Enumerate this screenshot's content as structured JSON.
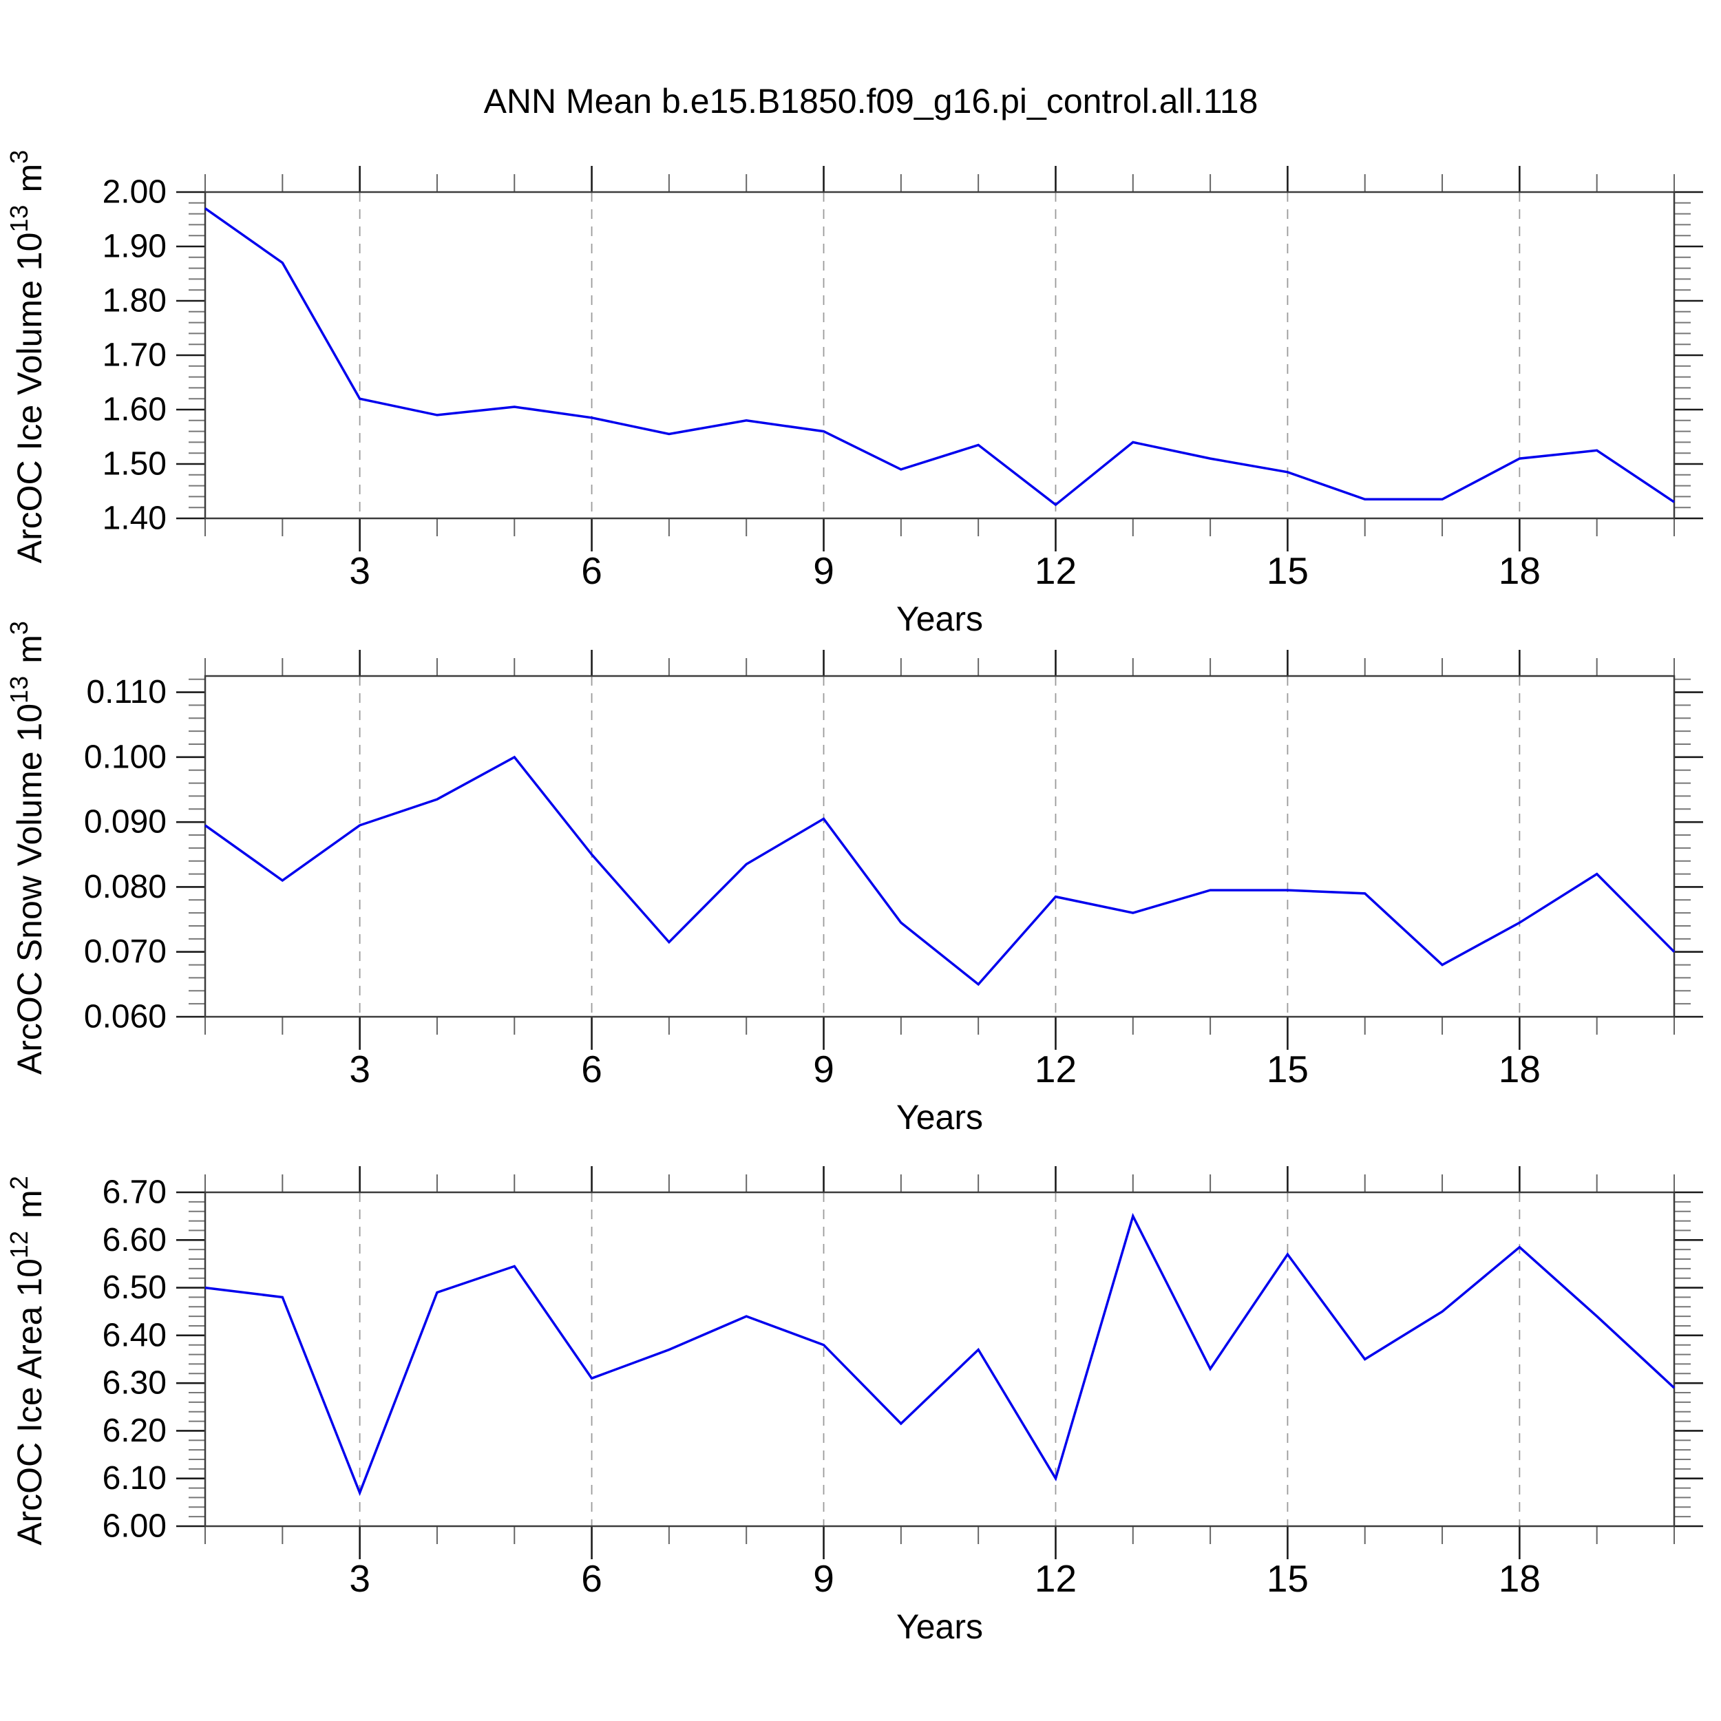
{
  "title": "ANN Mean b.e15.B1850.f09_g16.pi_control.all.118",
  "style": {
    "line_color": "#0000ed",
    "border_color": "#3c3c3c",
    "major_tick_color": "#1a1a1a",
    "minor_tick_color": "#777777",
    "year_tick_color": "#666666",
    "grid_color": "#9a9a9a",
    "label_color": "#000000"
  },
  "chart_data": [
    {
      "type": "line",
      "name": "arcoc-ice-volume",
      "ylabel_plain": "ArcOC Ice Volume 10^13 m^3",
      "ylabel_parts": [
        {
          "text": "ArcOC Ice Volume 10"
        },
        {
          "super": "13"
        },
        {
          "text": " m"
        },
        {
          "super": "3"
        }
      ],
      "xlabel": "Years",
      "x": [
        1,
        2,
        3,
        4,
        5,
        6,
        7,
        8,
        9,
        10,
        11,
        12,
        13,
        14,
        15,
        16,
        17,
        18,
        19,
        20
      ],
      "values": [
        1.97,
        1.87,
        1.62,
        1.59,
        1.605,
        1.585,
        1.555,
        1.58,
        1.56,
        1.49,
        1.535,
        1.425,
        1.54,
        1.51,
        1.485,
        1.435,
        1.435,
        1.51,
        1.525,
        1.43
      ],
      "xlim": [
        1,
        20
      ],
      "ylim": [
        1.4,
        2.0
      ],
      "ytick_values": [
        1.4,
        1.5,
        1.6,
        1.7,
        1.8,
        1.9,
        2.0
      ],
      "ytick_labels": [
        "1.40",
        "1.50",
        "1.60",
        "1.70",
        "1.80",
        "1.90",
        "2.00"
      ],
      "y_minor_step": 0.02,
      "xticks_labeled": [
        3,
        6,
        9,
        12,
        15,
        18
      ],
      "xtick_labels": [
        "3",
        "6",
        "9",
        "12",
        "15",
        "18"
      ],
      "grid_years": [
        3,
        6,
        9,
        12,
        15,
        18
      ],
      "grid_style": "dashed-vertical"
    },
    {
      "type": "line",
      "name": "arcoc-snow-volume",
      "ylabel_plain": "ArcOC Snow Volume 10^13 m^3",
      "ylabel_parts": [
        {
          "text": "ArcOC Snow Volume 10"
        },
        {
          "super": "13"
        },
        {
          "text": " m"
        },
        {
          "super": "3"
        }
      ],
      "xlabel": "Years",
      "x": [
        1,
        2,
        3,
        4,
        5,
        6,
        7,
        8,
        9,
        10,
        11,
        12,
        13,
        14,
        15,
        16,
        17,
        18,
        19,
        20
      ],
      "values": [
        0.0895,
        0.081,
        0.0895,
        0.0935,
        0.1,
        0.085,
        0.0715,
        0.0835,
        0.0905,
        0.0745,
        0.065,
        0.0785,
        0.076,
        0.0795,
        0.0795,
        0.079,
        0.068,
        0.0745,
        0.082,
        0.07
      ],
      "xlim": [
        1,
        20
      ],
      "ylim": [
        0.06,
        0.1125
      ],
      "ytick_values": [
        0.06,
        0.07,
        0.08,
        0.09,
        0.1,
        0.11
      ],
      "ytick_labels": [
        "0.060",
        "0.070",
        "0.080",
        "0.090",
        "0.100",
        "0.110"
      ],
      "y_minor_step": 0.002,
      "xticks_labeled": [
        3,
        6,
        9,
        12,
        15,
        18
      ],
      "xtick_labels": [
        "3",
        "6",
        "9",
        "12",
        "15",
        "18"
      ],
      "grid_years": [
        3,
        6,
        9,
        12,
        15,
        18
      ],
      "grid_style": "dashed-vertical"
    },
    {
      "type": "line",
      "name": "arcoc-ice-area",
      "ylabel_plain": "ArcOC Ice Area 10^12 m^2",
      "ylabel_parts": [
        {
          "text": "ArcOC Ice Area 10"
        },
        {
          "super": "12"
        },
        {
          "text": " m"
        },
        {
          "super": "2"
        }
      ],
      "xlabel": "Years",
      "x": [
        1,
        2,
        3,
        4,
        5,
        6,
        7,
        8,
        9,
        10,
        11,
        12,
        13,
        14,
        15,
        16,
        17,
        18,
        19,
        20
      ],
      "values": [
        6.5,
        6.48,
        6.07,
        6.49,
        6.545,
        6.31,
        6.37,
        6.44,
        6.38,
        6.215,
        6.37,
        6.1,
        6.65,
        6.33,
        6.57,
        6.35,
        6.45,
        6.585,
        6.44,
        6.29
      ],
      "xlim": [
        1,
        20
      ],
      "ylim": [
        6.0,
        6.7
      ],
      "ytick_values": [
        6.0,
        6.1,
        6.2,
        6.3,
        6.4,
        6.5,
        6.6,
        6.7
      ],
      "ytick_labels": [
        "6.00",
        "6.10",
        "6.20",
        "6.30",
        "6.40",
        "6.50",
        "6.60",
        "6.70"
      ],
      "y_minor_step": 0.02,
      "xticks_labeled": [
        3,
        6,
        9,
        12,
        15,
        18
      ],
      "xtick_labels": [
        "3",
        "6",
        "9",
        "12",
        "15",
        "18"
      ],
      "grid_years": [
        3,
        6,
        9,
        12,
        15,
        18
      ],
      "grid_style": "dashed-vertical"
    }
  ]
}
